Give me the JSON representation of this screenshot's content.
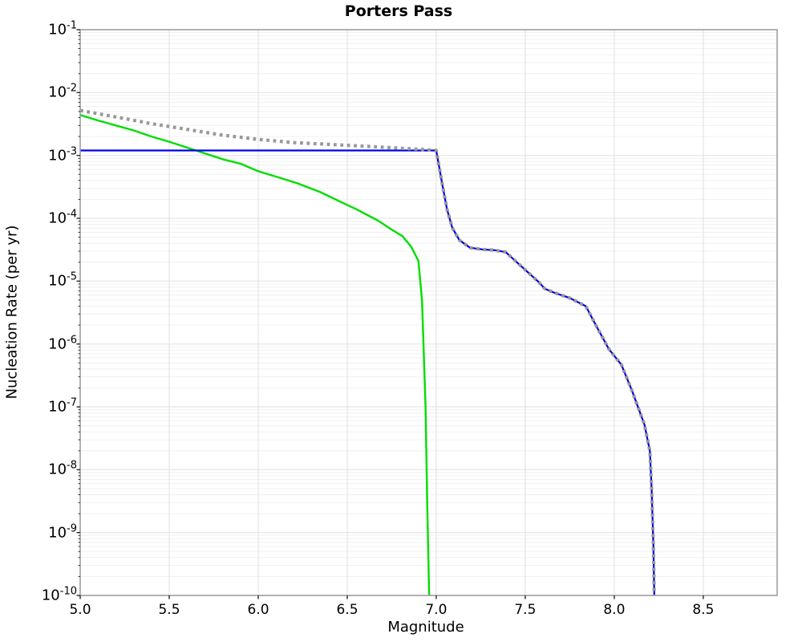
{
  "figure": {
    "title": "Porters Pass"
  },
  "chart_data": {
    "type": "line",
    "title": "Porters Pass",
    "xlabel": "Magnitude",
    "ylabel": "Nucleation Rate (per yr)",
    "x_range": [
      5.0,
      8.915
    ],
    "y_log_range": [
      -10,
      -1
    ],
    "x_ticks": [
      "5.0",
      "5.5",
      "6.0",
      "6.5",
      "7.0",
      "7.5",
      "8.0",
      "8.5"
    ],
    "y_tick_exponents": [
      -1,
      -2,
      -3,
      -4,
      -5,
      -6,
      -7,
      -8,
      -9,
      -10
    ],
    "grid": {
      "y_major": true,
      "y_minor": true,
      "x_major": true,
      "x_minor": false
    },
    "legend_position": "none",
    "series": [
      {
        "name": "green-solid-curve",
        "color": "#00dd00",
        "style": "solid",
        "width": 2.4,
        "points": [
          [
            5.0,
            0.0044
          ],
          [
            5.1,
            0.0036
          ],
          [
            5.2,
            0.003
          ],
          [
            5.3,
            0.0025
          ],
          [
            5.4,
            0.002
          ],
          [
            5.5,
            0.00165
          ],
          [
            5.65,
            0.0012
          ],
          [
            5.8,
            0.00087
          ],
          [
            5.9,
            0.00074
          ],
          [
            6.0,
            0.00056
          ],
          [
            6.1,
            0.00046
          ],
          [
            6.22,
            0.00036
          ],
          [
            6.35,
            0.00026
          ],
          [
            6.45,
            0.00019
          ],
          [
            6.55,
            0.00014
          ],
          [
            6.67,
            9.3e-05
          ],
          [
            6.75,
            6.6e-05
          ],
          [
            6.81,
            5.2e-05
          ],
          [
            6.86,
            3.5e-05
          ],
          [
            6.9,
            2.1e-05
          ],
          [
            6.92,
            5e-06
          ],
          [
            6.94,
            1e-07
          ],
          [
            6.95,
            2.5e-09
          ],
          [
            6.96,
            1e-10
          ]
        ]
      },
      {
        "name": "blue-solid-curve",
        "color": "#0000ee",
        "style": "solid",
        "width": 2.2,
        "points": [
          [
            5.0,
            0.0012
          ],
          [
            7.0,
            0.0012
          ],
          [
            7.03,
            0.0004
          ],
          [
            7.06,
            0.00014
          ],
          [
            7.09,
            7.1e-05
          ],
          [
            7.13,
            4.5e-05
          ],
          [
            7.19,
            3.4e-05
          ],
          [
            7.26,
            3.2e-05
          ],
          [
            7.33,
            3.1e-05
          ],
          [
            7.39,
            2.9e-05
          ],
          [
            7.48,
            1.7e-05
          ],
          [
            7.57,
            1e-05
          ],
          [
            7.61,
            7.6e-06
          ],
          [
            7.66,
            6.6e-06
          ],
          [
            7.75,
            5.4e-06
          ],
          [
            7.84,
            4e-06
          ],
          [
            7.91,
            1.7e-06
          ],
          [
            7.97,
            8.3e-07
          ],
          [
            8.04,
            4.7e-07
          ],
          [
            8.1,
            1.8e-07
          ],
          [
            8.17,
            5.2e-08
          ],
          [
            8.2,
            2e-08
          ],
          [
            8.21,
            5e-09
          ],
          [
            8.22,
            6.3e-10
          ],
          [
            8.225,
            1e-10
          ]
        ]
      },
      {
        "name": "gray-dotted-curve",
        "color": "#999999",
        "style": "dotted",
        "width": 4.2,
        "points": [
          [
            5.0,
            0.0052
          ],
          [
            5.2,
            0.0041
          ],
          [
            5.4,
            0.0032
          ],
          [
            5.6,
            0.0026
          ],
          [
            5.8,
            0.0021
          ],
          [
            6.0,
            0.0018
          ],
          [
            6.2,
            0.0016
          ],
          [
            6.4,
            0.0015
          ],
          [
            6.6,
            0.0014
          ],
          [
            6.8,
            0.0013
          ],
          [
            6.95,
            0.00123
          ],
          [
            7.0,
            0.0012
          ],
          [
            7.03,
            0.0004
          ],
          [
            7.06,
            0.00014
          ],
          [
            7.09,
            7.1e-05
          ],
          [
            7.13,
            4.5e-05
          ],
          [
            7.19,
            3.4e-05
          ],
          [
            7.26,
            3.2e-05
          ],
          [
            7.33,
            3.1e-05
          ],
          [
            7.39,
            2.9e-05
          ],
          [
            7.48,
            1.7e-05
          ],
          [
            7.57,
            1e-05
          ],
          [
            7.61,
            7.6e-06
          ],
          [
            7.66,
            6.6e-06
          ],
          [
            7.75,
            5.4e-06
          ],
          [
            7.84,
            4e-06
          ],
          [
            7.91,
            1.7e-06
          ],
          [
            7.97,
            8.3e-07
          ],
          [
            8.04,
            4.7e-07
          ],
          [
            8.1,
            1.8e-07
          ],
          [
            8.17,
            5.2e-08
          ],
          [
            8.2,
            2e-08
          ],
          [
            8.21,
            5e-09
          ],
          [
            8.22,
            6.3e-10
          ],
          [
            8.225,
            1e-10
          ]
        ]
      }
    ]
  },
  "colors": {
    "background": "#ffffff",
    "grid_major": "#e0e0e0",
    "grid_minor": "#f0f0f0",
    "axis_border": "#999999",
    "tick_mark": "#262626",
    "text": "#000000"
  }
}
